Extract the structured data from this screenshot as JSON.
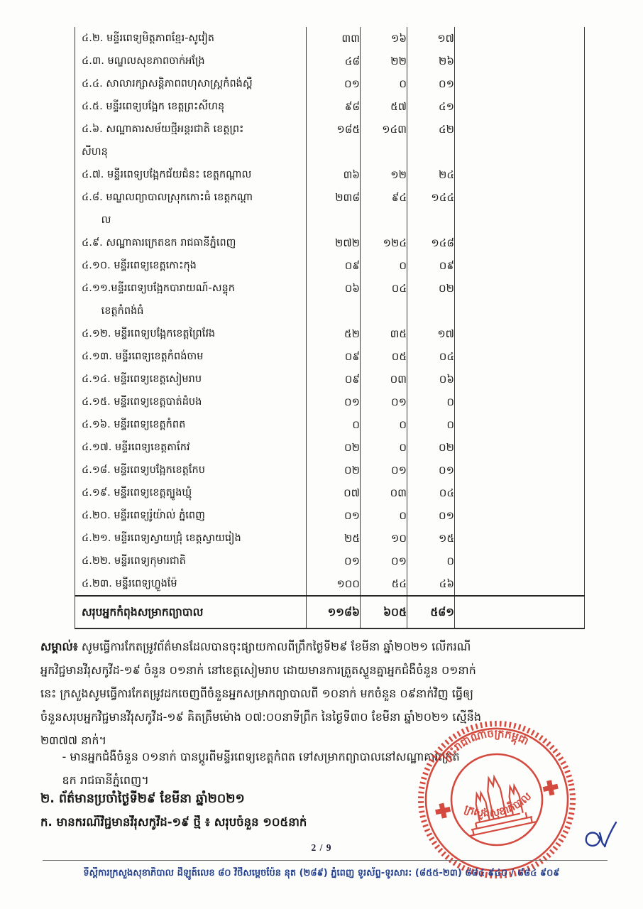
{
  "table": {
    "rows": [
      {
        "lines": [
          "៤.២. មន្ទីរពេទ្យមិត្តភាពខ្មែរ-សូវៀត"
        ],
        "c1": "៣៣",
        "c2": "១៦",
        "c3": "១៧"
      },
      {
        "lines": [
          "៤.៣. មណ្ឌលសុខភាពចាក់អង្រែ"
        ],
        "c1": "៤៨",
        "c2": "២២",
        "c3": "២៦"
      },
      {
        "lines": [
          "៤.៤. សាលារក្សាសន្តិភាពពហុសាស្ត្រកំពង់ស្ពឺ"
        ],
        "c1": "០១",
        "c2": "០",
        "c3": "០១"
      },
      {
        "lines": [
          "៤.៥. មន្ទីរពេទ្យបង្អែក ខេត្តព្រះសីហនុ"
        ],
        "c1": "៩៨",
        "c2": "៥៧",
        "c3": "៤១"
      },
      {
        "lines": [
          "៤.៦. សណ្ឋាគារសម័យថ្មីអន្តរជាតិ ខេត្តព្រះ",
          "សីហនុ"
        ],
        "c1": "១៨៥",
        "c2": "១៤៣",
        "c3": "៤២"
      },
      {
        "lines": [
          "៤.៧. មន្ទីរពេទ្យបង្អែកជ័យជំនះ ខេត្តកណ្តាល"
        ],
        "c1": "៣៦",
        "c2": "១២",
        "c3": "២៤"
      },
      {
        "lines": [
          "៤.៨. មណ្ឌលព្យាបាលស្រុកកោះធំ ខេត្តកណ្តា",
          "      ល"
        ],
        "c1": "២៣៨",
        "c2": "៩៤",
        "c3": "១៤៤"
      },
      {
        "lines": [
          "៤.៩. សណ្ឋាគារក្រេតឧក រាជធានីភ្នំពេញ"
        ],
        "c1": "២៧២",
        "c2": "១២៤",
        "c3": "១៤៨"
      },
      {
        "lines": [
          "៤.១០. មន្ទីរពេទ្យខេត្តកោះកុង"
        ],
        "c1": "០៩",
        "c2": "០",
        "c3": "០៩"
      },
      {
        "lines": [
          "៤.១១.មន្ទីរពេទ្យបង្អែកបារាយណ៍-សន្ទុក",
          "      ខេត្តកំពង់ធំ"
        ],
        "c1": "០៦",
        "c2": "០៤",
        "c3": "០២"
      },
      {
        "lines": [
          "៤.១២. មន្ទីរពេទ្យបង្អែកខេត្តព្រៃវែង"
        ],
        "c1": "៥២",
        "c2": "៣៥",
        "c3": "១៧"
      },
      {
        "lines": [
          "៤.១៣. មន្ទីរពេទ្យខេត្តកំពង់ចាម"
        ],
        "c1": "០៩",
        "c2": "០៥",
        "c3": "០៤"
      },
      {
        "lines": [
          "៤.១៤. មន្ទីរពេទ្យខេត្តសៀមរាប"
        ],
        "c1": "០៩",
        "c2": "០៣",
        "c3": "០៦"
      },
      {
        "lines": [
          "៤.១៥. មន្ទីរពេទ្យខេត្តបាត់ដំបង"
        ],
        "c1": "០១",
        "c2": "០១",
        "c3": "០"
      },
      {
        "lines": [
          "៤.១៦. មន្ទីរពេទ្យខេត្តកំពត"
        ],
        "c1": "០",
        "c2": "០",
        "c3": "០"
      },
      {
        "lines": [
          "៤.១៧. មន្ទីរពេទ្យខេត្តតាកែវ"
        ],
        "c1": "០២",
        "c2": "០",
        "c3": "០២"
      },
      {
        "lines": [
          "៤.១៨. មន្ទីរពេទ្យបង្អែកខេត្តកែប"
        ],
        "c1": "០២",
        "c2": "០១",
        "c3": "០១"
      },
      {
        "lines": [
          "៤.១៩. មន្ទីរពេទ្យខេត្តត្បូងឃ្មុំ"
        ],
        "c1": "០៧",
        "c2": "០៣",
        "c3": "០៤"
      },
      {
        "lines": [
          "៤.២០. មន្ទីរពេទ្យរ៉ូយ៉ាល់ ភ្នំពេញ"
        ],
        "c1": "០១",
        "c2": "០",
        "c3": "០១"
      },
      {
        "lines": [
          "៤.២១. មន្ទីរពេទ្យស្វាយជ្រុំ ខេត្តស្វាយរៀង"
        ],
        "c1": "២៥",
        "c2": "១០",
        "c3": "១៥"
      },
      {
        "lines": [
          "៤.២២. មន្ទីរពេទ្យកុមារជាតិ"
        ],
        "c1": "០១",
        "c2": "០១",
        "c3": "០"
      },
      {
        "lines": [
          "៤.២៣. មន្ទីរពេទ្យហ្លួងម៉ែ"
        ],
        "c1": "១០០",
        "c2": "៥៤",
        "c3": "៤៦"
      }
    ],
    "total": {
      "label": "សរុបអ្នកកំពុងសម្រាកព្យាបាល",
      "c1": "១១៨៦",
      "c2": "៦០៥",
      "c3": "៥៨១"
    }
  },
  "note": {
    "label": "សម្គាល់៖",
    "lines": [
      " សូមធ្វើការកែតម្រូវព័ត៌មានដែលបានចុះផ្សាយកាលពីព្រឹកថ្ងៃទី២៩ ខែមីនា ឆ្នាំ២០២១ លើករណី",
      "អ្នកវិជ្ជមានវីរុសកូវីដ-១៩ ចំនួន ០១នាក់ នៅខេត្តសៀមរាប ដោយមានការត្រួតស្ទួនគ្នាអ្នកជំងឺចំនួន ០១នាក់",
      "នេះ ក្រសួងសូមធ្វើការកែតម្រូវដកចេញពីចំនួនអ្នកសម្រាកព្យាបាលពី ១០នាក់ មកចំនួន ០៩នាក់វិញ ធ្វើឲ្យ",
      "ចំនួនសរុបអ្នកវិជ្ជមានវីរុសកូវីដ-១៩ គិតត្រឹមម៉ោង ០៧:០០នាទីព្រឹក នៃថ្ងៃទី៣០ ខែមីនា ឆ្នាំ២០២១ ស្មើនឹង",
      "២៣៧៧ នាក់។"
    ],
    "bullet_lines": [
      "      - មានអ្នកជំងឺចំនួន ០១នាក់ បានប្តូរពីមន្ទីរពេទ្យខេត្តកំពត ទៅសម្រាកព្យាបាលនៅសណ្ឋាគារក្រេត",
      "      ឧក រាជធានីភ្នំពេញ។"
    ]
  },
  "sections": {
    "heading_main": "២. ព័ត៌មានប្រចាំថ្ងៃទី២៩ ខែមីនា ឆ្នាំ២០២១",
    "heading_sub": "ក. មានករណីវិជ្ជមានវីរុសកូវីដ-១៩ ថ្មី ៖ សរុបចំនួន ១០៥នាក់"
  },
  "stamp": {
    "text_top": "ព្រះរាជាណាចក្រកម្ពុជា",
    "text_bottom": "ក្រសួងសុខាភិបាល",
    "color": "#cf3226"
  },
  "footer": {
    "page_number": "2 / 9",
    "text": "ទីស្តីការក្រសួងសុខាភិបាល ដីឡូត៍លេខ ៨០ វិថីសម្តេចប៉ែន នុត (២៨៩) ភ្នំពេញ ទូរស័ព្ទ-ទូរសារ: (៨៥៥-២៣) ៨៨៤ ៩៤០ / ៨៨៤ ៩០៩",
    "text_color": "#24418e"
  },
  "colors": {
    "ink": "#161616",
    "table_border": "#3b3b3b",
    "stamp_red": "#cf3226",
    "signature_blue": "#273c96"
  }
}
